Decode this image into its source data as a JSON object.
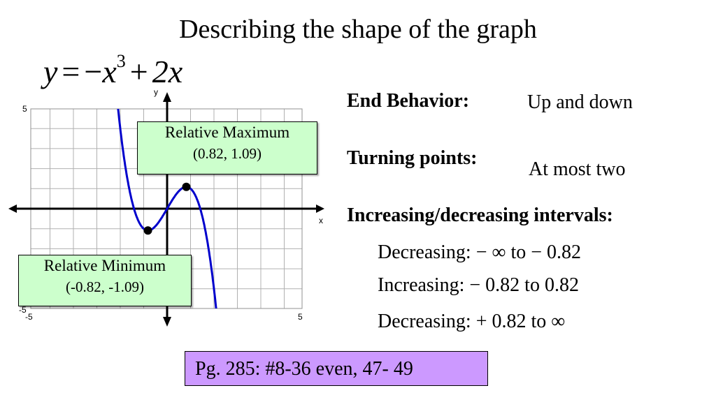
{
  "title": "Describing the shape of the graph",
  "equation": {
    "lhs": "y",
    "equals": "=",
    "minus": "−",
    "term1": "x",
    "exponent": "3",
    "plus": "+",
    "term2": "2x"
  },
  "graph": {
    "x_axis_label": "x",
    "y_axis_label": "y",
    "x_range": [
      -5,
      5
    ],
    "y_range": [
      -5,
      5
    ],
    "tick_labels": {
      "y_top": "5",
      "y_bottom": "-5",
      "x_left": "-5",
      "x_right": "5"
    },
    "curve": "y = -x^3 + 2x",
    "points": [
      {
        "x": 0.82,
        "y": 1.09
      },
      {
        "x": -0.82,
        "y": -1.09
      }
    ]
  },
  "callouts": {
    "max_title": "Relative Maximum",
    "max_coords": "(0.82, 1.09)",
    "min_title": "Relative Minimum",
    "min_coords": "(-0.82, -1.09)"
  },
  "info": {
    "end_behavior_heading": "End Behavior:",
    "end_behavior_value": "Up and down",
    "turning_points_heading": "Turning points:",
    "turning_points_value": "At most two",
    "intervals_heading": "Increasing/decreasing intervals:",
    "interval_1": "Decreasing: − ∞ to − 0.82",
    "interval_2": "Increasing: − 0.82 to 0.82",
    "interval_3": "Decreasing: + 0.82 to ∞"
  },
  "homework": "Pg. 285: #8-36 even, 47- 49",
  "colors": {
    "curve": "#0000cc",
    "callout_bg": "#ccffcc",
    "homework_bg": "#cc99ff",
    "grid": "#b0b0b0"
  }
}
